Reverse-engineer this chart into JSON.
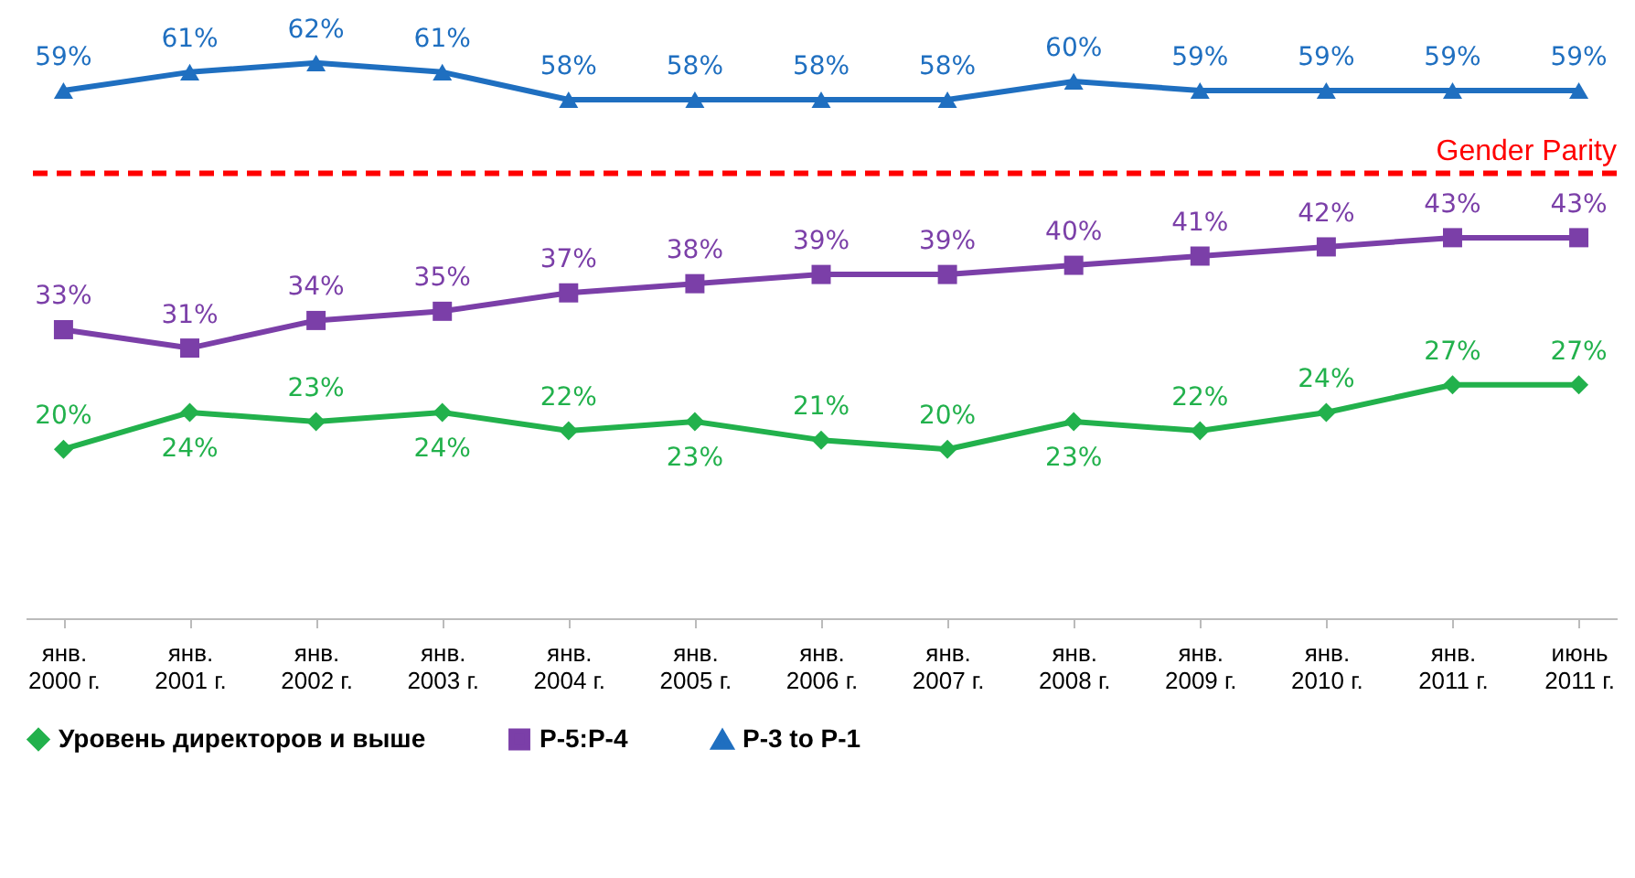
{
  "chart_data": {
    "type": "line",
    "categories": [
      "янв.\n2000 г.",
      "янв.\n2001 г.",
      "янв.\n2002 г.",
      "янв.\n2003 г.",
      "янв.\n2004 г.",
      "янв.\n2005 г.",
      "янв.\n2006 г.",
      "янв.\n2007 г.",
      "янв.\n2008 г.",
      "янв.\n2009 г.",
      "янв.\n2010 г.",
      "янв.\n2011 г.",
      "июнь\n2011 г."
    ],
    "series": [
      {
        "name": "Уровень директоров и выше",
        "color": "#22b14c",
        "marker": "diamond",
        "values": [
          20,
          24,
          23,
          24,
          22,
          23,
          21,
          20,
          23,
          22,
          24,
          27,
          27
        ],
        "value_labels": [
          "20%",
          "24%",
          "23%",
          "24%",
          "22%",
          "23%",
          "21%",
          "20%",
          "23%",
          "22%",
          "24%",
          "27%",
          "27%"
        ]
      },
      {
        "name": "P-5:P-4",
        "color": "#7b3fa8",
        "marker": "square",
        "values": [
          33,
          31,
          34,
          35,
          37,
          38,
          39,
          39,
          40,
          41,
          42,
          43,
          43
        ],
        "value_labels": [
          "33%",
          "31%",
          "34%",
          "35%",
          "37%",
          "38%",
          "39%",
          "39%",
          "40%",
          "41%",
          "42%",
          "43%",
          "43%"
        ]
      },
      {
        "name": "P-3 to P-1",
        "color": "#1f6fc0",
        "marker": "triangle",
        "values": [
          59,
          61,
          62,
          61,
          58,
          58,
          58,
          58,
          60,
          59,
          59,
          59,
          59
        ],
        "value_labels": [
          "59%",
          "61%",
          "62%",
          "61%",
          "58%",
          "58%",
          "58%",
          "58%",
          "60%",
          "59%",
          "59%",
          "59%",
          "59%"
        ]
      }
    ],
    "ref_lines": [
      {
        "axis": "y",
        "value": 50,
        "label": "Gender Parity",
        "color": "#ff0000",
        "line_style": "dashed"
      }
    ],
    "legend": "bottom",
    "grid": false
  }
}
